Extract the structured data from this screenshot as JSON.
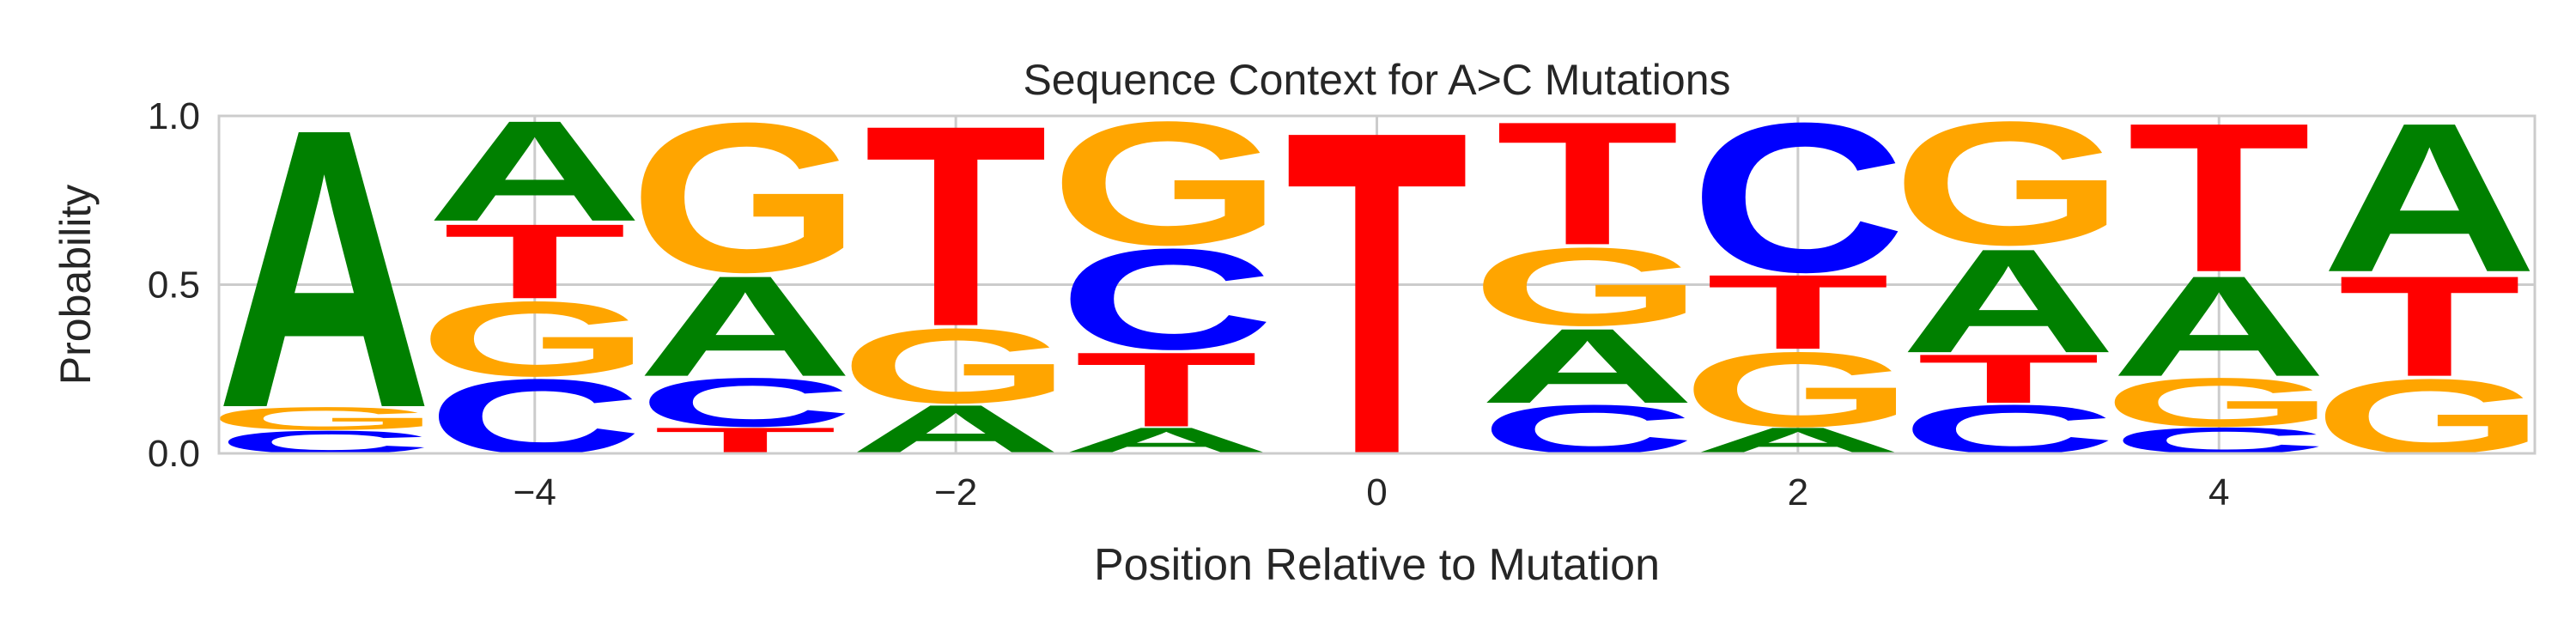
{
  "chart_data": {
    "type": "sequence-logo",
    "title": "Sequence Context for A>C Mutations",
    "xlabel": "Position Relative to Mutation",
    "ylabel": "Probability",
    "xlim": [
      -5.5,
      5.5
    ],
    "ylim": [
      0,
      1
    ],
    "xticks": [
      -4,
      -2,
      0,
      2,
      4
    ],
    "xtick_labels": [
      "−4",
      "−2",
      "0",
      "2",
      "4"
    ],
    "yticks": [
      0.0,
      0.5,
      1.0
    ],
    "ytick_labels": [
      "0.0",
      "0.5",
      "1.0"
    ],
    "grid": true,
    "base_colors": {
      "A": "#008000",
      "C": "#0000ff",
      "G": "#ffa500",
      "T": "#ff0000"
    },
    "positions": [
      {
        "pos": -5,
        "stack": [
          {
            "base": "C",
            "p": 0.07
          },
          {
            "base": "G",
            "p": 0.07
          },
          {
            "base": "A",
            "p": 0.86
          }
        ]
      },
      {
        "pos": -4,
        "stack": [
          {
            "base": "C",
            "p": 0.23
          },
          {
            "base": "G",
            "p": 0.23
          },
          {
            "base": "T",
            "p": 0.23
          },
          {
            "base": "A",
            "p": 0.31
          }
        ]
      },
      {
        "pos": -3,
        "stack": [
          {
            "base": "T",
            "p": 0.08
          },
          {
            "base": "C",
            "p": 0.15
          },
          {
            "base": "A",
            "p": 0.31
          },
          {
            "base": "G",
            "p": 0.46
          }
        ]
      },
      {
        "pos": -2,
        "stack": [
          {
            "base": "A",
            "p": 0.15
          },
          {
            "base": "G",
            "p": 0.23
          },
          {
            "base": "T",
            "p": 0.62
          }
        ]
      },
      {
        "pos": -1,
        "stack": [
          {
            "base": "A",
            "p": 0.08
          },
          {
            "base": "T",
            "p": 0.23
          },
          {
            "base": "C",
            "p": 0.31
          },
          {
            "base": "G",
            "p": 0.38
          }
        ]
      },
      {
        "pos": 0,
        "stack": [
          {
            "base": "T",
            "p": 1.0
          }
        ]
      },
      {
        "pos": 1,
        "stack": [
          {
            "base": "C",
            "p": 0.15
          },
          {
            "base": "A",
            "p": 0.23
          },
          {
            "base": "G",
            "p": 0.24
          },
          {
            "base": "T",
            "p": 0.38
          }
        ]
      },
      {
        "pos": 2,
        "stack": [
          {
            "base": "A",
            "p": 0.08
          },
          {
            "base": "G",
            "p": 0.23
          },
          {
            "base": "T",
            "p": 0.23
          },
          {
            "base": "C",
            "p": 0.46
          }
        ]
      },
      {
        "pos": 3,
        "stack": [
          {
            "base": "C",
            "p": 0.15
          },
          {
            "base": "T",
            "p": 0.15
          },
          {
            "base": "A",
            "p": 0.32
          },
          {
            "base": "G",
            "p": 0.38
          }
        ]
      },
      {
        "pos": 4,
        "stack": [
          {
            "base": "C",
            "p": 0.08
          },
          {
            "base": "G",
            "p": 0.15
          },
          {
            "base": "A",
            "p": 0.31
          },
          {
            "base": "T",
            "p": 0.46
          }
        ]
      },
      {
        "pos": 5,
        "stack": [
          {
            "base": "G",
            "p": 0.23
          },
          {
            "base": "T",
            "p": 0.31
          },
          {
            "base": "A",
            "p": 0.46
          }
        ]
      }
    ]
  }
}
